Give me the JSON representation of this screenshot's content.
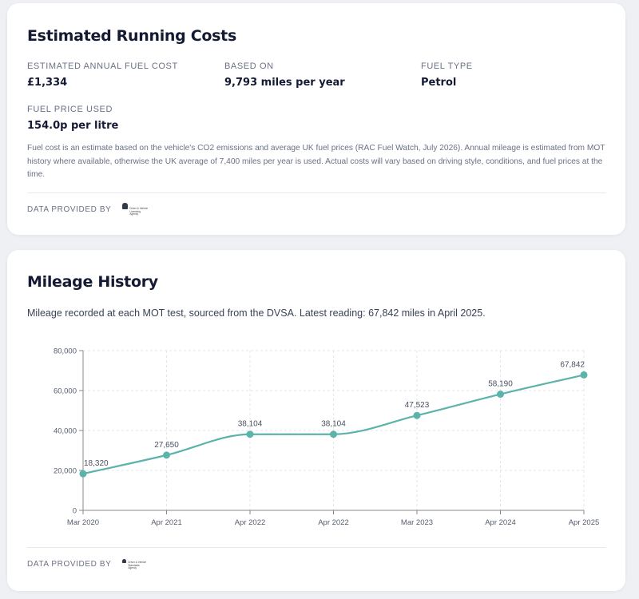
{
  "running_costs": {
    "title": "Estimated Running Costs",
    "stats": [
      {
        "label": "ESTIMATED ANNUAL FUEL COST",
        "value": "£1,334"
      },
      {
        "label": "BASED ON",
        "value": "9,793 miles per year"
      },
      {
        "label": "FUEL TYPE",
        "value": "Petrol"
      },
      {
        "label": "FUEL PRICE USED",
        "value": "154.0p per litre"
      }
    ],
    "note": "Fuel cost is an estimate based on the vehicle's CO2 emissions and average UK fuel prices (RAC Fuel Watch, July 2026). Annual mileage is estimated from MOT history where available, otherwise the UK average of 7,400 miles per year is used. Actual costs will vary based on driving style, conditions, and fuel prices at the time.",
    "provided_by": "DATA PROVIDED BY",
    "logo_text": "Driver & Vehicle\nLicensing\nAgency"
  },
  "mileage_history": {
    "title": "Mileage History",
    "subtitle": "Mileage recorded at each MOT test, sourced from the DVSA. Latest reading: 67,842 miles in April 2025.",
    "provided_by": "DATA PROVIDED BY",
    "logo_text": "Driver & Vehicle\nStandards\nAgency"
  },
  "chart_data": {
    "type": "line",
    "categories": [
      "Mar 2020",
      "Apr 2021",
      "Apr 2022",
      "Apr 2022",
      "Mar 2023",
      "Apr 2024",
      "Apr 2025"
    ],
    "values": [
      18320,
      27650,
      38104,
      38104,
      47523,
      58190,
      67842
    ],
    "value_labels": [
      "18,320",
      "27,650",
      "38,104",
      "38,104",
      "47,523",
      "58,190",
      "67,842"
    ],
    "y_ticks": [
      "0",
      "20,000",
      "40,000",
      "60,000",
      "80,000"
    ],
    "ylim": [
      0,
      80000
    ],
    "grid": true,
    "line_color": "#5bb3a9",
    "point_color": "#5bb3a9"
  }
}
